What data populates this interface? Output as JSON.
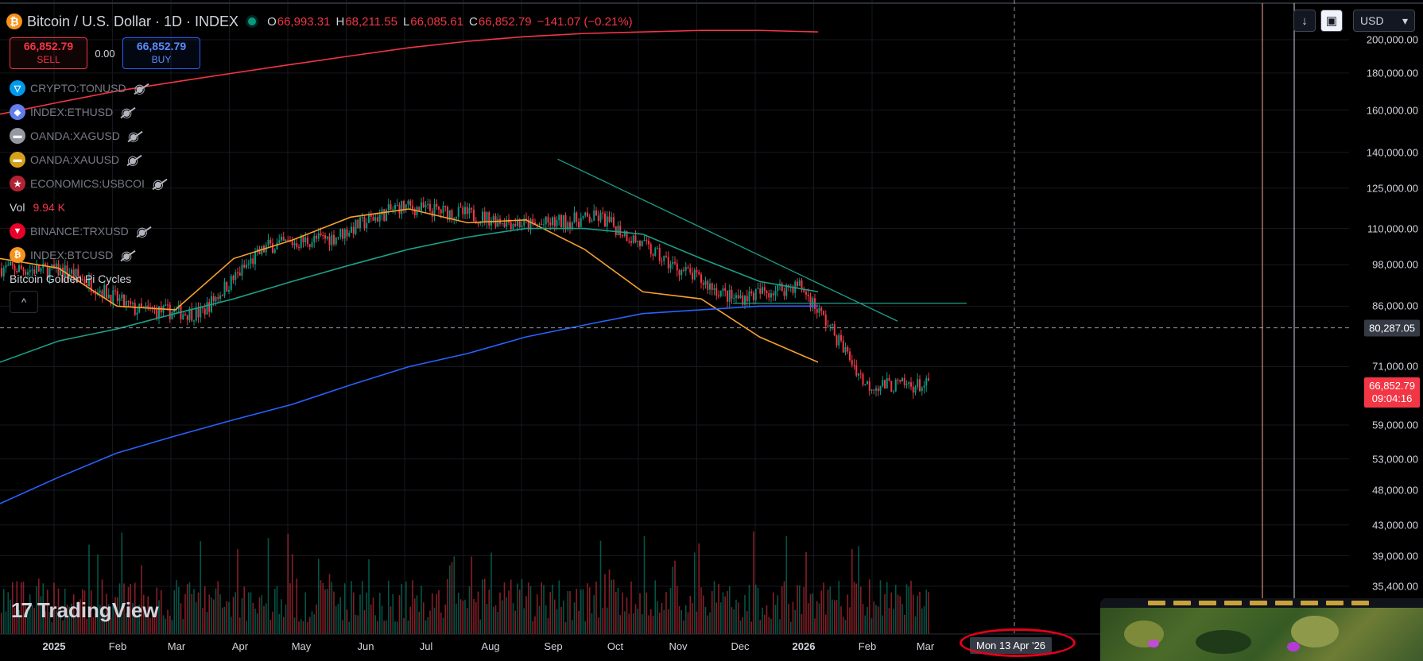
{
  "header": {
    "title": "Bitcoin / U.S. Dollar · 1D · INDEX",
    "ohlc": [
      {
        "k": "O",
        "v": "66,993.31"
      },
      {
        "k": "H",
        "v": "68,211.55"
      },
      {
        "k": "L",
        "v": "66,085.61"
      },
      {
        "k": "C",
        "v": "66,852.79"
      }
    ],
    "change": "−141.07 (−0.21%)"
  },
  "trade": {
    "sell_price": "66,852.79",
    "sell_label": "SELL",
    "spread": "0.00",
    "buy_price": "66,852.79",
    "buy_label": "BUY"
  },
  "legend": {
    "symbols": [
      {
        "name": "CRYPTO:TONUSD",
        "icon": "ton-icon",
        "color": "#0098ea",
        "glyph": "▽"
      },
      {
        "name": "INDEX:ETHUSD",
        "icon": "ethereum-icon",
        "color": "#627eea",
        "glyph": "◆"
      },
      {
        "name": "OANDA:XAGUSD",
        "icon": "silver-icon",
        "color": "#9598a1",
        "glyph": "▬"
      },
      {
        "name": "OANDA:XAUUSD",
        "icon": "gold-icon",
        "color": "#d4a017",
        "glyph": "▬"
      },
      {
        "name": "ECONOMICS:USBCOI",
        "icon": "us-flag-icon",
        "color": "#b22234",
        "glyph": "★"
      }
    ],
    "vol_label": "Vol",
    "vol_value": "9.94 K",
    "symbols2": [
      {
        "name": "BINANCE:TRXUSD",
        "icon": "tron-icon",
        "color": "#eb0029",
        "glyph": "▼"
      },
      {
        "name": "INDEX:BTCUSD",
        "icon": "bitcoin-icon",
        "color": "#f7931a",
        "glyph": "₿"
      }
    ],
    "indicator": "Bitcoin Golden Pi Cycles",
    "collapse_glyph": "^"
  },
  "price_axis": {
    "labels": [
      "200,000.00",
      "180,000.00",
      "160,000.00",
      "140,000.00",
      "125,000.00",
      "110,000.00",
      "98,000.00",
      "86,000.00",
      "71,000.00",
      "59,000.00",
      "53,000.00",
      "48,000.00",
      "43,000.00",
      "39,000.00",
      "35,400.00"
    ],
    "crosshair_price": "80,287.05",
    "last_price": "66,852.79",
    "countdown": "09:04:16"
  },
  "time_axis": {
    "labels": [
      "2025",
      "Feb",
      "Mar",
      "Apr",
      "May",
      "Jun",
      "Jul",
      "Aug",
      "Sep",
      "Oct",
      "Nov",
      "Dec",
      "2026",
      "Feb",
      "Mar"
    ],
    "bold": [
      "2025",
      "2026"
    ],
    "crosshair_time": "Mon 13 Apr '26"
  },
  "toolbar": {
    "scroll_icon": "arrow-down-icon",
    "autoscale_icon": "autoscale-icon",
    "currency": "USD"
  },
  "branding": {
    "name": "TradingView"
  },
  "colors": {
    "up": "#089981",
    "down": "#f23645",
    "ma_orange": "#f7a12e",
    "ma_teal": "#1c9e8a",
    "ma_blue": "#2962ff",
    "ma_red": "#f23645"
  },
  "chart_data": {
    "type": "candlestick",
    "symbol": "BTCUSD",
    "interval": "1D",
    "x": [
      "2025-01",
      "2025-02",
      "2025-03",
      "2025-04",
      "2025-05",
      "2025-06",
      "2025-07",
      "2025-08",
      "2025-09",
      "2025-10",
      "2025-11",
      "2025-12",
      "2026-01",
      "2026-02",
      "2026-03"
    ],
    "price_approx": [
      97000,
      96000,
      85000,
      84000,
      104000,
      107000,
      118000,
      115000,
      111000,
      114000,
      99000,
      88000,
      92000,
      67000,
      66852.79
    ],
    "series": [
      {
        "color": "#f7a12e",
        "values": [
          100000,
          97000,
          86000,
          85000,
          100000,
          106000,
          114000,
          117000,
          112000,
          113000,
          103000,
          90000,
          88000,
          78000,
          72000
        ]
      },
      {
        "color": "#1c9e8a",
        "values": [
          72000,
          77000,
          80000,
          84000,
          88000,
          93000,
          98000,
          103000,
          107000,
          110000,
          110000,
          108000,
          100000,
          93000,
          90000
        ]
      },
      {
        "color": "#2962ff",
        "values": [
          46000,
          50000,
          54000,
          57000,
          60000,
          63000,
          67000,
          71000,
          74000,
          78000,
          81000,
          84000,
          85000,
          86000,
          86000
        ]
      },
      {
        "color": "#f23645",
        "values": [
          158000,
          164000,
          170000,
          175000,
          180000,
          185000,
          190000,
          195000,
          199000,
          202000,
          204000,
          205000,
          206000,
          206000,
          205000
        ]
      }
    ],
    "trendlines": [
      {
        "from": [
          "2025-10",
          137000
        ],
        "to": [
          "2026-03+",
          82000
        ]
      },
      {
        "from": [
          "2026-01",
          86800
        ],
        "to": [
          "2026-05",
          86800
        ]
      }
    ],
    "ylim": [
      34000,
      210000
    ],
    "yscale": "log",
    "grid": true
  }
}
